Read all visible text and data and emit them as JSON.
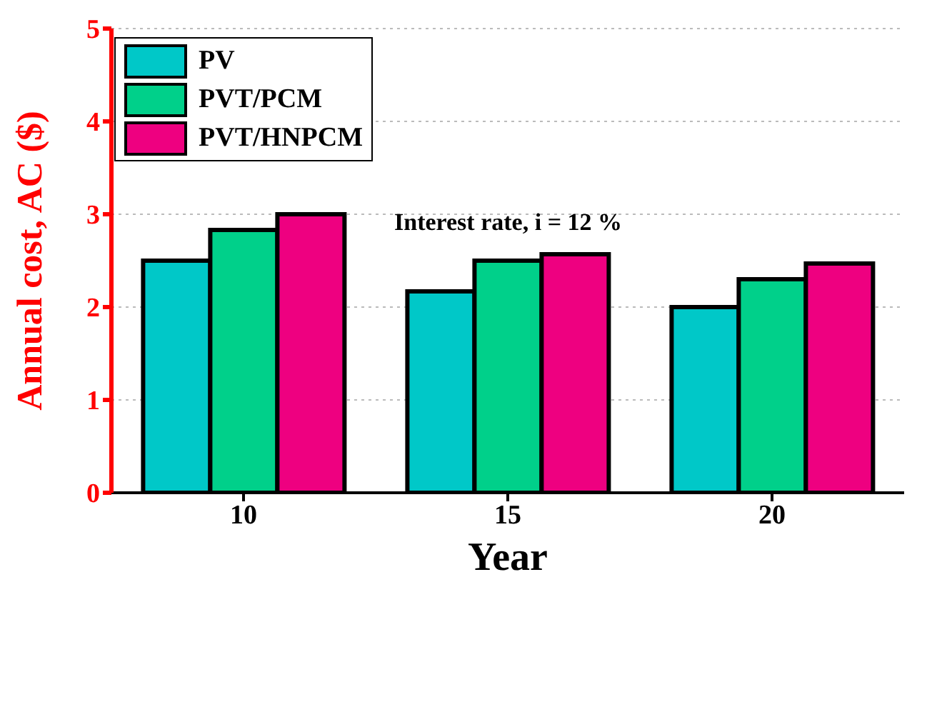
{
  "chart_data": {
    "type": "bar",
    "categories": [
      "10",
      "15",
      "20"
    ],
    "xlabel": "Year",
    "ylabel": "Annual cost, AC ($)",
    "ylim": [
      0,
      5
    ],
    "yticks": [
      0,
      1,
      2,
      3,
      4,
      5
    ],
    "grid": "y",
    "legend": "top left",
    "annotations": [
      "Interest rate, i = 12 %"
    ],
    "series": [
      {
        "name": "PV",
        "color": "#00c8c8",
        "values": [
          2.5,
          2.17,
          2.0
        ]
      },
      {
        "name": "PVT/PCM",
        "color": "#00d08a",
        "values": [
          2.83,
          2.5,
          2.3
        ]
      },
      {
        "name": "PVT/HNPCM",
        "color": "#ee0080",
        "values": [
          3.0,
          2.57,
          2.47
        ]
      }
    ]
  }
}
